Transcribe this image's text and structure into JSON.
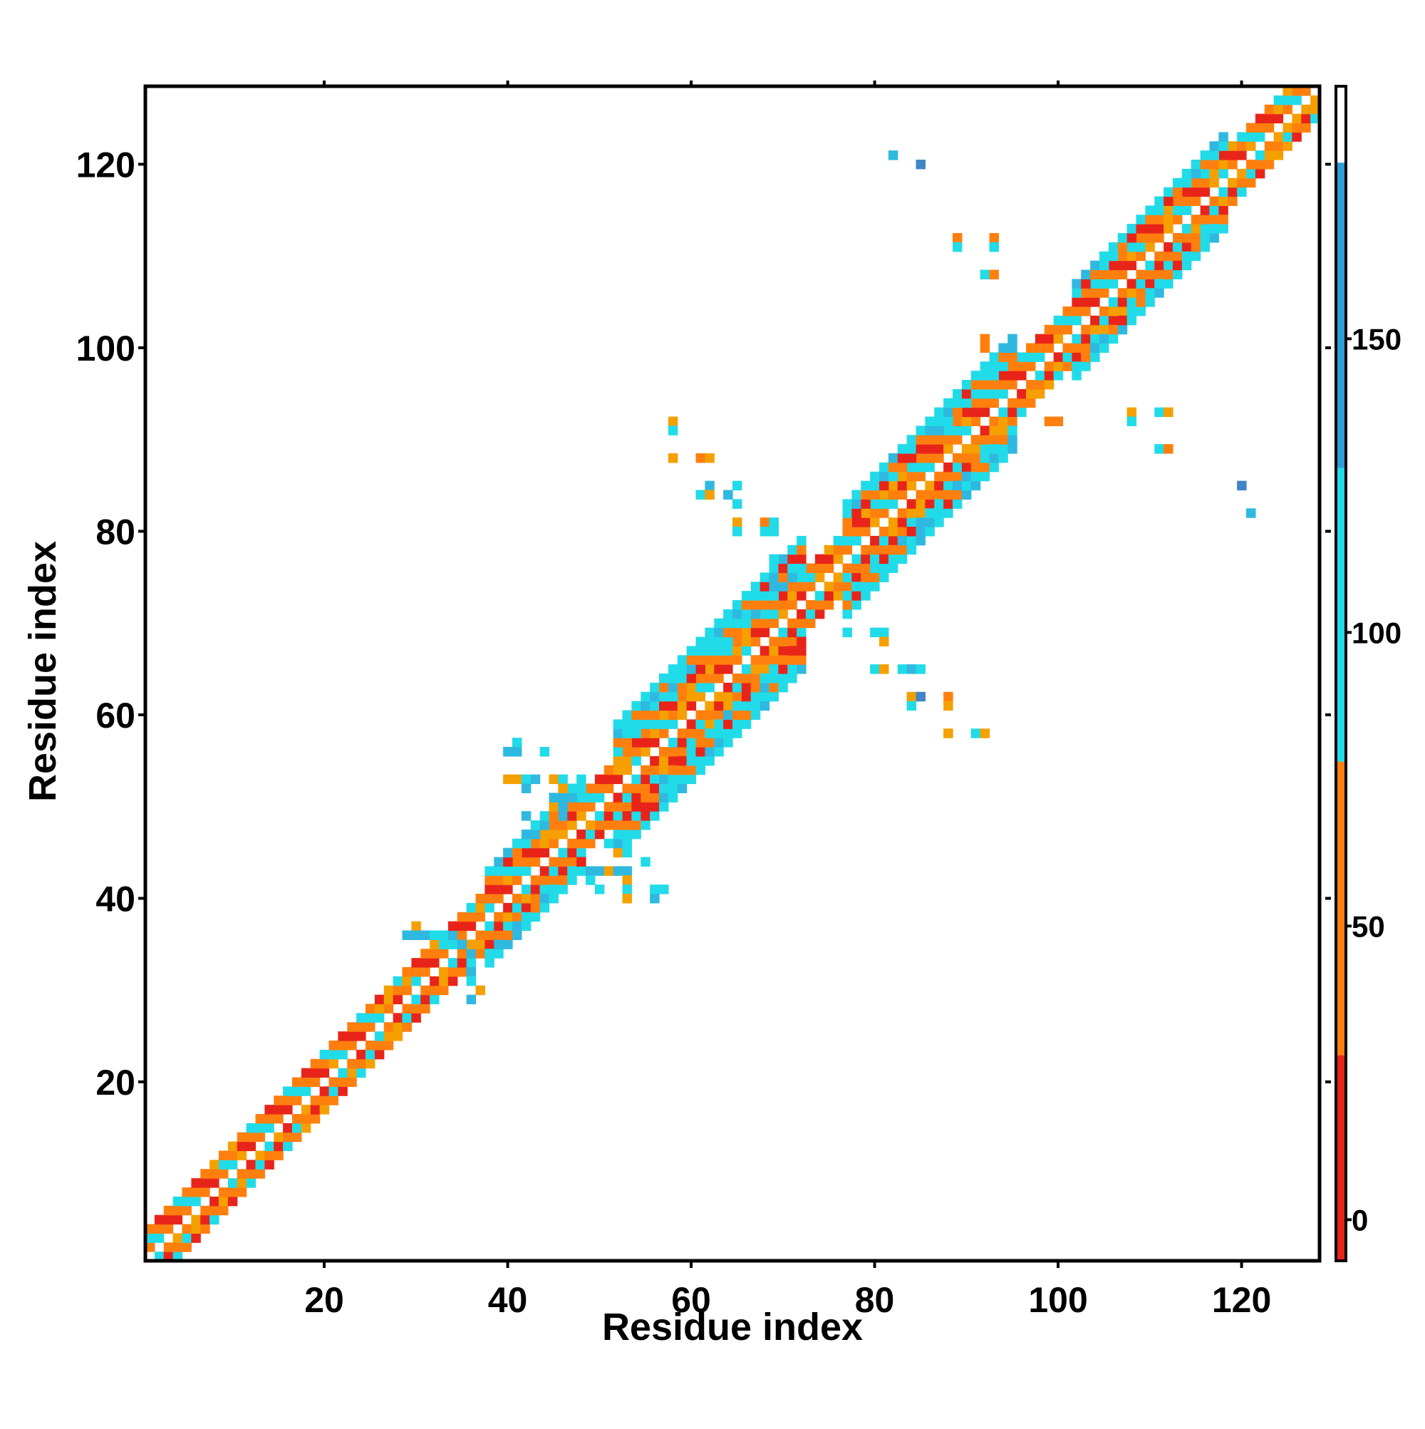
{
  "chart_data": {
    "type": "heatmap",
    "title": "",
    "xlabel": "Residue index",
    "ylabel": "Residue index",
    "xlim": [
      1,
      128
    ],
    "ylim": [
      1,
      128
    ],
    "x_ticks": [
      20,
      40,
      60,
      80,
      100,
      120
    ],
    "y_ticks": [
      20,
      40,
      60,
      80,
      100,
      120
    ],
    "colorbar": {
      "ticks": [
        0,
        50,
        100,
        150
      ],
      "range": [
        -7,
        193
      ],
      "bands": [
        {
          "from": -7,
          "to": 28,
          "color": "#e8241a"
        },
        {
          "from": 28,
          "to": 78,
          "color": "#ff7f0e"
        },
        {
          "from": 78,
          "to": 128,
          "color": "#22dbe8"
        },
        {
          "from": 128,
          "to": 180,
          "color": "#2c9ed8"
        },
        {
          "from": 180,
          "to": 193,
          "color": "#ffffff"
        }
      ]
    },
    "palette": {
      "red": "#e8241a",
      "orange": "#ff7f0e",
      "amber": "#f5a000",
      "cyan": "#22dbe8",
      "skyblue": "#2fb9e0",
      "steelblue": "#3f86c4"
    },
    "diagonal_band": {
      "start": 1,
      "end": 128,
      "half_width": 3,
      "pattern": [
        "orange",
        "red",
        "orange",
        "cyan"
      ]
    },
    "broad_segments": [
      {
        "from": 38,
        "to": 48,
        "half_width": 5
      },
      {
        "from": 52,
        "to": 72,
        "half_width": 7
      },
      {
        "from": 77,
        "to": 95,
        "half_width": 6
      },
      {
        "from": 102,
        "to": 118,
        "half_width": 5
      }
    ],
    "off_diagonal_cells": [
      {
        "i": 82,
        "j": 121,
        "c": "skyblue"
      },
      {
        "i": 85,
        "j": 120,
        "c": "steelblue"
      },
      {
        "i": 89,
        "j": 112,
        "c": "orange"
      },
      {
        "i": 89,
        "j": 111,
        "c": "cyan"
      },
      {
        "i": 93,
        "j": 112,
        "c": "orange"
      },
      {
        "i": 93,
        "j": 111,
        "c": "cyan"
      },
      {
        "i": 92,
        "j": 108,
        "c": "cyan"
      },
      {
        "i": 93,
        "j": 108,
        "c": "orange"
      },
      {
        "i": 92,
        "j": 101,
        "c": "orange"
      },
      {
        "i": 92,
        "j": 100,
        "c": "orange"
      },
      {
        "i": 58,
        "j": 92,
        "c": "amber"
      },
      {
        "i": 58,
        "j": 91,
        "c": "cyan"
      },
      {
        "i": 58,
        "j": 88,
        "c": "amber"
      },
      {
        "i": 61,
        "j": 88,
        "c": "orange"
      },
      {
        "i": 62,
        "j": 88,
        "c": "amber"
      },
      {
        "i": 62,
        "j": 85,
        "c": "skyblue"
      },
      {
        "i": 61,
        "j": 84,
        "c": "cyan"
      },
      {
        "i": 62,
        "j": 84,
        "c": "amber"
      },
      {
        "i": 64,
        "j": 84,
        "c": "skyblue"
      },
      {
        "i": 65,
        "j": 85,
        "c": "cyan"
      },
      {
        "i": 65,
        "j": 83,
        "c": "cyan"
      },
      {
        "i": 65,
        "j": 81,
        "c": "amber"
      },
      {
        "i": 65,
        "j": 80,
        "c": "cyan"
      },
      {
        "i": 68,
        "j": 81,
        "c": "orange"
      },
      {
        "i": 69,
        "j": 81,
        "c": "cyan"
      },
      {
        "i": 68,
        "j": 80,
        "c": "cyan"
      },
      {
        "i": 69,
        "j": 80,
        "c": "cyan"
      },
      {
        "i": 69,
        "j": 77,
        "c": "cyan"
      },
      {
        "i": 99,
        "j": 92,
        "c": "orange"
      },
      {
        "i": 100,
        "j": 92,
        "c": "orange"
      },
      {
        "i": 108,
        "j": 93,
        "c": "amber"
      },
      {
        "i": 108,
        "j": 92,
        "c": "cyan"
      },
      {
        "i": 111,
        "j": 93,
        "c": "cyan"
      },
      {
        "i": 112,
        "j": 93,
        "c": "amber"
      },
      {
        "i": 111,
        "j": 89,
        "c": "cyan"
      },
      {
        "i": 112,
        "j": 89,
        "c": "orange"
      },
      {
        "i": 120,
        "j": 85,
        "c": "steelblue"
      },
      {
        "i": 121,
        "j": 82,
        "c": "skyblue"
      },
      {
        "i": 77,
        "j": 69,
        "c": "cyan"
      },
      {
        "i": 80,
        "j": 69,
        "c": "cyan"
      },
      {
        "i": 81,
        "j": 69,
        "c": "cyan"
      },
      {
        "i": 81,
        "j": 68,
        "c": "amber"
      },
      {
        "i": 80,
        "j": 65,
        "c": "cyan"
      },
      {
        "i": 81,
        "j": 65,
        "c": "amber"
      },
      {
        "i": 83,
        "j": 65,
        "c": "cyan"
      },
      {
        "i": 84,
        "j": 65,
        "c": "skyblue"
      },
      {
        "i": 85,
        "j": 65,
        "c": "cyan"
      },
      {
        "i": 84,
        "j": 62,
        "c": "amber"
      },
      {
        "i": 85,
        "j": 62,
        "c": "steelblue"
      },
      {
        "i": 88,
        "j": 62,
        "c": "orange"
      },
      {
        "i": 84,
        "j": 61,
        "c": "cyan"
      },
      {
        "i": 88,
        "j": 61,
        "c": "amber"
      },
      {
        "i": 88,
        "j": 58,
        "c": "amber"
      },
      {
        "i": 91,
        "j": 58,
        "c": "cyan"
      },
      {
        "i": 92,
        "j": 58,
        "c": "amber"
      },
      {
        "i": 41,
        "j": 57,
        "c": "cyan"
      },
      {
        "i": 40,
        "j": 56,
        "c": "skyblue"
      },
      {
        "i": 41,
        "j": 56,
        "c": "skyblue"
      },
      {
        "i": 44,
        "j": 56,
        "c": "cyan"
      },
      {
        "i": 40,
        "j": 53,
        "c": "amber"
      },
      {
        "i": 41,
        "j": 53,
        "c": "amber"
      },
      {
        "i": 42,
        "j": 53,
        "c": "cyan"
      },
      {
        "i": 43,
        "j": 53,
        "c": "skyblue"
      },
      {
        "i": 45,
        "j": 53,
        "c": "amber"
      },
      {
        "i": 46,
        "j": 53,
        "c": "cyan"
      },
      {
        "i": 42,
        "j": 52,
        "c": "skyblue"
      },
      {
        "i": 46,
        "j": 52,
        "c": "amber"
      },
      {
        "i": 45,
        "j": 51,
        "c": "skyblue"
      },
      {
        "i": 46,
        "j": 51,
        "c": "skyblue"
      },
      {
        "i": 45,
        "j": 50,
        "c": "amber"
      },
      {
        "i": 46,
        "j": 50,
        "c": "skyblue"
      },
      {
        "i": 42,
        "j": 49,
        "c": "skyblue"
      },
      {
        "i": 44,
        "j": 49,
        "c": "cyan"
      },
      {
        "i": 45,
        "j": 49,
        "c": "orange"
      },
      {
        "i": 46,
        "j": 49,
        "c": "skyblue"
      },
      {
        "i": 51,
        "j": 46,
        "c": "cyan"
      },
      {
        "i": 52,
        "j": 46,
        "c": "skyblue"
      },
      {
        "i": 53,
        "j": 46,
        "c": "cyan"
      },
      {
        "i": 52,
        "j": 45,
        "c": "amber"
      },
      {
        "i": 53,
        "j": 45,
        "c": "cyan"
      },
      {
        "i": 55,
        "j": 44,
        "c": "cyan"
      },
      {
        "i": 49,
        "j": 43,
        "c": "skyblue"
      },
      {
        "i": 50,
        "j": 43,
        "c": "skyblue"
      },
      {
        "i": 51,
        "j": 43,
        "c": "amber"
      },
      {
        "i": 52,
        "j": 43,
        "c": "skyblue"
      },
      {
        "i": 53,
        "j": 43,
        "c": "skyblue"
      },
      {
        "i": 49,
        "j": 42,
        "c": "cyan"
      },
      {
        "i": 53,
        "j": 42,
        "c": "amber"
      },
      {
        "i": 50,
        "j": 41,
        "c": "cyan"
      },
      {
        "i": 53,
        "j": 41,
        "c": "cyan"
      },
      {
        "i": 56,
        "j": 41,
        "c": "cyan"
      },
      {
        "i": 57,
        "j": 41,
        "c": "cyan"
      },
      {
        "i": 53,
        "j": 40,
        "c": "amber"
      },
      {
        "i": 56,
        "j": 40,
        "c": "skyblue"
      },
      {
        "i": 30,
        "j": 37,
        "c": "amber"
      },
      {
        "i": 29,
        "j": 36,
        "c": "skyblue"
      },
      {
        "i": 30,
        "j": 36,
        "c": "skyblue"
      },
      {
        "i": 31,
        "j": 36,
        "c": "skyblue"
      },
      {
        "i": 32,
        "j": 36,
        "c": "cyan"
      },
      {
        "i": 33,
        "j": 36,
        "c": "cyan"
      },
      {
        "i": 34,
        "j": 36,
        "c": "skyblue"
      },
      {
        "i": 35,
        "j": 35,
        "c": "skyblue"
      },
      {
        "i": 36,
        "j": 34,
        "c": "skyblue"
      },
      {
        "i": 36,
        "j": 33,
        "c": "cyan"
      },
      {
        "i": 36,
        "j": 32,
        "c": "skyblue"
      },
      {
        "i": 36,
        "j": 31,
        "c": "cyan"
      },
      {
        "i": 37,
        "j": 30,
        "c": "amber"
      },
      {
        "i": 36,
        "j": 29,
        "c": "skyblue"
      }
    ]
  }
}
